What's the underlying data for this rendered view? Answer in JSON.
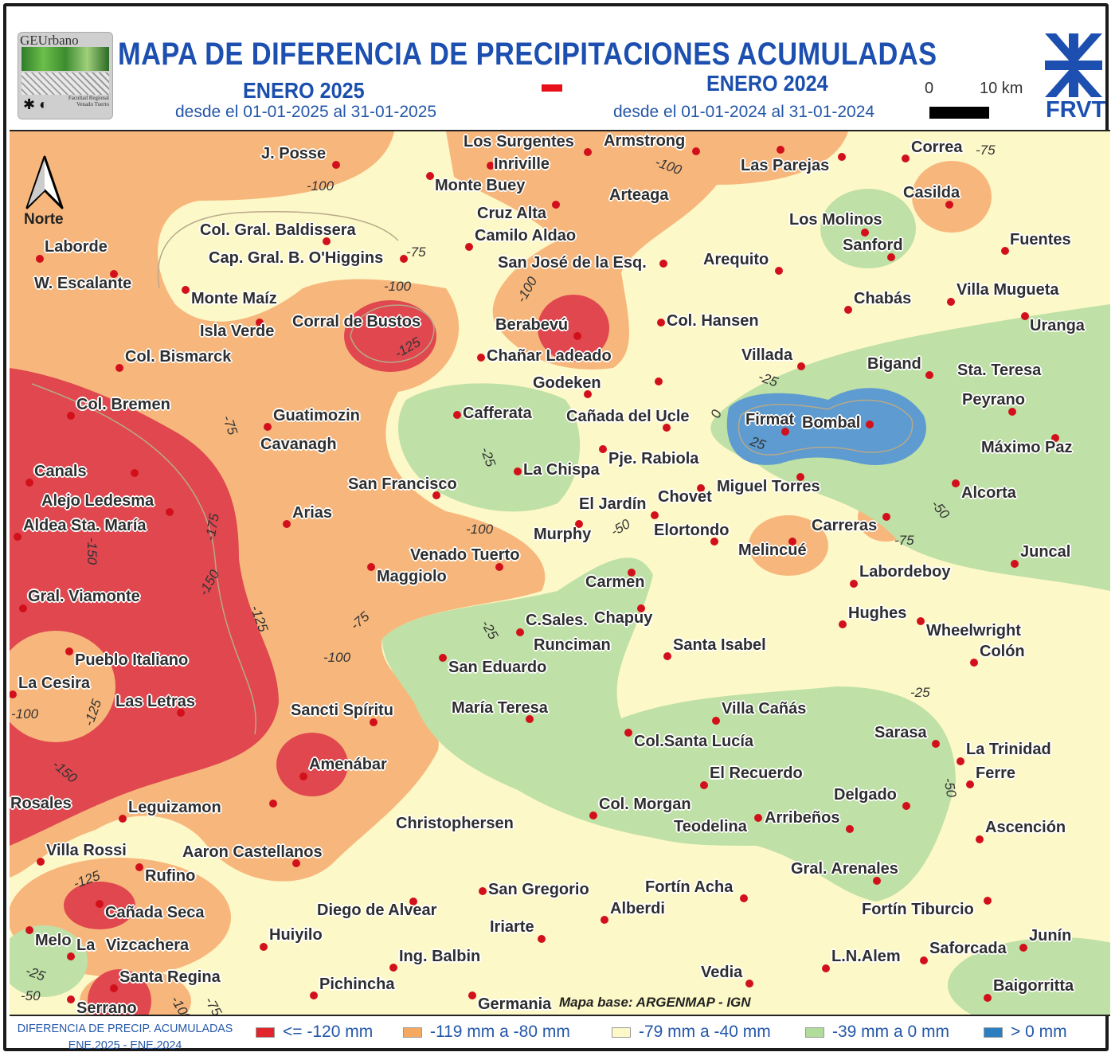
{
  "header": {
    "title": "MAPA DE DIFERENCIA DE PRECIPITACIONES ACUMULADAS",
    "period_a": "ENERO 2025",
    "period_a_dates": "desde el 01-01-2025 al 31-01-2025",
    "period_b": "ENERO 2024",
    "period_b_dates": "desde el 01-01-2024 al 31-01-2024",
    "logo_left_text": "GEUrbano",
    "logo_left_sub": "Facultad Regional Venado Tuerto",
    "logo_right_text": "FRVT",
    "scale_start": "0",
    "scale_end": "10 km"
  },
  "map": {
    "north_label": "Norte",
    "base_credit": "Mapa base: ARGENMAP - IGN",
    "colors": {
      "red": "#e0474f",
      "orange": "#f7b77c",
      "yellow": "#fdf8c8",
      "green": "#bfe0a6",
      "blue": "#5d9bd0",
      "town_dot": "#d2101c"
    },
    "towns": [
      "J. Posse",
      "Los Surgentes",
      "Armstrong",
      "Las Parejas",
      "Correa",
      "Inriville",
      "Monte Buey",
      "Arteaga",
      "Casilda",
      "Cruz Alta",
      "Camilo Aldao",
      "Los Molinos",
      "Col. Gral. Baldissera",
      "Cap. Gral. B. O'Higgins",
      "Sanford",
      "Fuentes",
      "Laborde",
      "San José de la Esq.",
      "Arequito",
      "W. Escalante",
      "Monte Maíz",
      "Chabás",
      "Villa Mugueta",
      "Corral de Bustos",
      "Isla Verde",
      "Berabevú",
      "Col. Hansen",
      "Uranga",
      "Col. Bismarck",
      "Chañar Ladeado",
      "Villada",
      "Bigand",
      "Sta. Teresa",
      "Godeken",
      "Peyrano",
      "Col. Bremen",
      "Guatimozin",
      "Cafferata",
      "Cañada del Ucle",
      "Firmat",
      "Bombal",
      "Cavanagh",
      "Máximo Paz",
      "Pje. Rabiola",
      "La Chispa",
      "Canals",
      "San Francisco",
      "Miguel Torres",
      "Alcorta",
      "Chovet",
      "Alejo Ledesma",
      "El Jardín",
      "Arias",
      "Aldea Sta. María",
      "Carreras",
      "Elortondo",
      "Murphy",
      "Melincué",
      "Juncal",
      "Venado Tuerto",
      "Maggiolo",
      "Labordeboy",
      "Carmen",
      "Gral. Viamonte",
      "C.Sales.",
      "Chapuy",
      "Hughes",
      "Wheelwright",
      "Runciman",
      "Santa Isabel",
      "Colón",
      "Pueblo Italiano",
      "San Eduardo",
      "La Cesira",
      "Las Letras",
      "María Teresa",
      "Sancti Spíritu",
      "Villa Cañás",
      "Sarasa",
      "Col.Santa Lucía",
      "La Trinidad",
      "Amenábar",
      "El Recuerdo",
      "Ferre",
      "Delgado",
      "Rosales",
      "Leguizamon",
      "Col. Morgan",
      "Arribeños",
      "Christophersen",
      "Teodelina",
      "Ascención",
      "Villa Rossi",
      "Aaron Castellanos",
      "Rufino",
      "Gral. Arenales",
      "Fortín Acha",
      "San Gregorio",
      "Cañada Seca",
      "Alberdi",
      "Fortín Tiburcio",
      "Diego de Alvear",
      "Iriarte",
      "Huiyilo",
      "Junín",
      "Melo",
      "La",
      "Vizcachera",
      "Saforcada",
      "L.N.Alem",
      "Ing. Balbin",
      "Vedia",
      "Santa Regina",
      "Baigorritta",
      "Pichincha",
      "Serrano",
      "Germania"
    ],
    "contour_labels": [
      "-100",
      "-75",
      "-100",
      "-100",
      "-125",
      "-100",
      "-75",
      "-25",
      "0",
      "25",
      "-25",
      "-75",
      "-50",
      "-100",
      "-50",
      "-75",
      "-175",
      "-150",
      "-150",
      "-125",
      "-75",
      "-100",
      "-25",
      "-25",
      "-125",
      "-100",
      "-150",
      "-50",
      "-125",
      "-25",
      "-50",
      "-100",
      "-75"
    ]
  },
  "legend": {
    "title_line1": "DIFERENCIA DE PRECIP. ACUMULADAS",
    "title_line2": "ENE.2025 - ENE.2024",
    "items": [
      {
        "label": "<= -120 mm",
        "color": "#e0262c"
      },
      {
        "label": "-119 mm a  -80 mm",
        "color": "#f5a860"
      },
      {
        "label": "-79 mm a -40 mm",
        "color": "#fdf8c8"
      },
      {
        "label": "-39 mm a 0 mm",
        "color": "#b2dc9a"
      },
      {
        "label": "> 0 mm",
        "color": "#2b7fc0"
      }
    ]
  }
}
